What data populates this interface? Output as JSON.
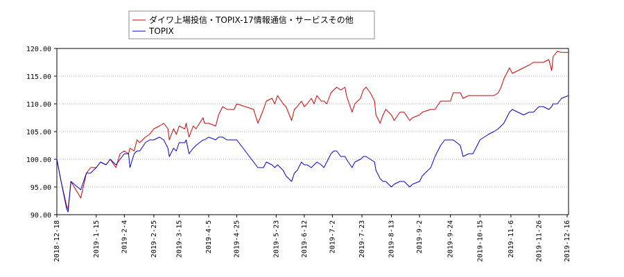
{
  "chart_data": {
    "type": "line",
    "title": "",
    "xlabel": "",
    "ylabel": "",
    "ylim": [
      90,
      120
    ],
    "xlim": [
      "2018-12-18",
      "2019-12-17"
    ],
    "grid": "y-dotted",
    "legend_position": "top-left",
    "y_ticks": [
      "90.00",
      "95.00",
      "100.00",
      "105.00",
      "110.00",
      "115.00",
      "120.00"
    ],
    "x_ticks": [
      "2018-12-18",
      "2019-1-15",
      "2019-2-4",
      "2019-2-25",
      "2019-3-15",
      "2019-4-5",
      "2019-4-25",
      "2019-5-23",
      "2019-6-12",
      "2019-7-2",
      "2019-7-23",
      "2019-8-13",
      "2019-9-2",
      "2019-9-24",
      "2019-10-15",
      "2019-11-6",
      "2019-11-26",
      "2019-12-16"
    ],
    "series": [
      {
        "name": "ダイワ上場投信・TOPIX-17情報通信・サービスその他",
        "color": "#cc0000",
        "points": [
          [
            "2018-12-18",
            100.0
          ],
          [
            "2018-12-21",
            96.0
          ],
          [
            "2018-12-25",
            91.5
          ],
          [
            "2018-12-26",
            91.0
          ],
          [
            "2018-12-28",
            96.0
          ],
          [
            "2019-1-4",
            93.0
          ],
          [
            "2019-1-8",
            97.5
          ],
          [
            "2019-1-11",
            98.5
          ],
          [
            "2019-1-15",
            98.5
          ],
          [
            "2019-1-18",
            99.5
          ],
          [
            "2019-1-22",
            99.0
          ],
          [
            "2019-1-25",
            100.0
          ],
          [
            "2019-1-29",
            98.5
          ],
          [
            "2019-2-1",
            101.0
          ],
          [
            "2019-2-4",
            101.5
          ],
          [
            "2019-2-7",
            101.0
          ],
          [
            "2019-2-8",
            102.0
          ],
          [
            "2019-2-11",
            101.5
          ],
          [
            "2019-2-13",
            103.5
          ],
          [
            "2019-2-15",
            103.0
          ],
          [
            "2019-2-19",
            104.0
          ],
          [
            "2019-2-22",
            104.5
          ],
          [
            "2019-2-25",
            105.5
          ],
          [
            "2019-3-1",
            106.0
          ],
          [
            "2019-3-4",
            106.5
          ],
          [
            "2019-3-7",
            105.5
          ],
          [
            "2019-3-8",
            103.5
          ],
          [
            "2019-3-11",
            105.5
          ],
          [
            "2019-3-13",
            104.5
          ],
          [
            "2019-3-15",
            106.0
          ],
          [
            "2019-3-19",
            105.5
          ],
          [
            "2019-3-20",
            106.5
          ],
          [
            "2019-3-22",
            104.0
          ],
          [
            "2019-3-25",
            106.0
          ],
          [
            "2019-3-27",
            105.5
          ],
          [
            "2019-4-1",
            107.5
          ],
          [
            "2019-4-2",
            106.5
          ],
          [
            "2019-4-5",
            106.5
          ],
          [
            "2019-4-10",
            106.0
          ],
          [
            "2019-4-12",
            108.0
          ],
          [
            "2019-4-15",
            109.5
          ],
          [
            "2019-4-18",
            109.0
          ],
          [
            "2019-4-23",
            109.0
          ],
          [
            "2019-4-25",
            110.0
          ],
          [
            "2019-5-7",
            109.0
          ],
          [
            "2019-5-10",
            106.5
          ],
          [
            "2019-5-14",
            109.0
          ],
          [
            "2019-5-16",
            110.5
          ],
          [
            "2019-5-20",
            111.0
          ],
          [
            "2019-5-22",
            110.0
          ],
          [
            "2019-5-24",
            111.5
          ],
          [
            "2019-5-28",
            110.0
          ],
          [
            "2019-5-30",
            109.5
          ],
          [
            "2019-6-3",
            107.0
          ],
          [
            "2019-6-5",
            109.0
          ],
          [
            "2019-6-7",
            109.5
          ],
          [
            "2019-6-10",
            110.5
          ],
          [
            "2019-6-12",
            109.5
          ],
          [
            "2019-6-14",
            110.0
          ],
          [
            "2019-6-17",
            111.0
          ],
          [
            "2019-6-19",
            110.0
          ],
          [
            "2019-6-21",
            111.5
          ],
          [
            "2019-6-24",
            110.5
          ],
          [
            "2019-6-26",
            110.5
          ],
          [
            "2019-6-28",
            110.0
          ],
          [
            "2019-7-1",
            112.0
          ],
          [
            "2019-7-3",
            112.5
          ],
          [
            "2019-7-5",
            113.0
          ],
          [
            "2019-7-8",
            112.5
          ],
          [
            "2019-7-11",
            113.0
          ],
          [
            "2019-7-12",
            111.5
          ],
          [
            "2019-7-16",
            108.5
          ],
          [
            "2019-7-18",
            110.0
          ],
          [
            "2019-7-22",
            111.0
          ],
          [
            "2019-7-24",
            112.5
          ],
          [
            "2019-7-26",
            113.0
          ],
          [
            "2019-7-29",
            112.0
          ],
          [
            "2019-8-1",
            110.5
          ],
          [
            "2019-8-2",
            108.0
          ],
          [
            "2019-8-5",
            106.5
          ],
          [
            "2019-8-7",
            108.0
          ],
          [
            "2019-8-9",
            109.0
          ],
          [
            "2019-8-13",
            108.0
          ],
          [
            "2019-8-15",
            107.0
          ],
          [
            "2019-8-19",
            108.5
          ],
          [
            "2019-8-22",
            108.5
          ],
          [
            "2019-8-26",
            107.0
          ],
          [
            "2019-8-28",
            107.5
          ],
          [
            "2019-9-2",
            108.0
          ],
          [
            "2019-9-4",
            108.5
          ],
          [
            "2019-9-10",
            109.0
          ],
          [
            "2019-9-13",
            109.0
          ],
          [
            "2019-9-17",
            110.5
          ],
          [
            "2019-9-20",
            110.5
          ],
          [
            "2019-9-24",
            110.5
          ],
          [
            "2019-9-26",
            112.0
          ],
          [
            "2019-10-1",
            112.0
          ],
          [
            "2019-10-3",
            111.0
          ],
          [
            "2019-10-7",
            111.5
          ],
          [
            "2019-10-10",
            111.5
          ],
          [
            "2019-10-15",
            111.5
          ],
          [
            "2019-10-21",
            111.5
          ],
          [
            "2019-10-25",
            111.5
          ],
          [
            "2019-10-28",
            112.0
          ],
          [
            "2019-10-30",
            113.0
          ],
          [
            "2019-11-1",
            114.5
          ],
          [
            "2019-11-5",
            116.5
          ],
          [
            "2019-11-7",
            115.5
          ],
          [
            "2019-11-11",
            116.0
          ],
          [
            "2019-11-15",
            116.5
          ],
          [
            "2019-11-19",
            117.0
          ],
          [
            "2019-11-22",
            117.5
          ],
          [
            "2019-11-26",
            117.5
          ],
          [
            "2019-11-29",
            117.5
          ],
          [
            "2019-12-3",
            118.0
          ],
          [
            "2019-12-5",
            116.0
          ],
          [
            "2019-12-6",
            118.5
          ],
          [
            "2019-12-9",
            119.5
          ],
          [
            "2019-12-12",
            119.3
          ],
          [
            "2019-12-17",
            119.3
          ]
        ]
      },
      {
        "name": "TOPIX",
        "color": "#0000cc",
        "points": [
          [
            "2018-12-18",
            100.0
          ],
          [
            "2018-12-21",
            96.0
          ],
          [
            "2018-12-25",
            91.0
          ],
          [
            "2018-12-26",
            90.5
          ],
          [
            "2018-12-28",
            96.0
          ],
          [
            "2019-1-4",
            94.5
          ],
          [
            "2019-1-8",
            97.5
          ],
          [
            "2019-1-11",
            97.5
          ],
          [
            "2019-1-15",
            98.5
          ],
          [
            "2019-1-18",
            99.5
          ],
          [
            "2019-1-22",
            99.0
          ],
          [
            "2019-1-25",
            100.0
          ],
          [
            "2019-1-29",
            99.0
          ],
          [
            "2019-2-1",
            100.0
          ],
          [
            "2019-2-4",
            101.0
          ],
          [
            "2019-2-7",
            101.0
          ],
          [
            "2019-2-8",
            98.5
          ],
          [
            "2019-2-11",
            101.0
          ],
          [
            "2019-2-13",
            101.5
          ],
          [
            "2019-2-15",
            101.5
          ],
          [
            "2019-2-19",
            103.0
          ],
          [
            "2019-2-22",
            103.5
          ],
          [
            "2019-2-25",
            103.5
          ],
          [
            "2019-3-1",
            104.0
          ],
          [
            "2019-3-4",
            103.5
          ],
          [
            "2019-3-7",
            102.0
          ],
          [
            "2019-3-8",
            100.5
          ],
          [
            "2019-3-11",
            102.0
          ],
          [
            "2019-3-13",
            101.5
          ],
          [
            "2019-3-15",
            103.0
          ],
          [
            "2019-3-19",
            103.0
          ],
          [
            "2019-3-20",
            103.5
          ],
          [
            "2019-3-22",
            101.0
          ],
          [
            "2019-3-25",
            102.0
          ],
          [
            "2019-3-27",
            102.5
          ],
          [
            "2019-4-1",
            103.5
          ],
          [
            "2019-4-2",
            103.5
          ],
          [
            "2019-4-5",
            104.0
          ],
          [
            "2019-4-10",
            103.5
          ],
          [
            "2019-4-12",
            104.0
          ],
          [
            "2019-4-15",
            104.0
          ],
          [
            "2019-4-18",
            103.5
          ],
          [
            "2019-4-23",
            103.5
          ],
          [
            "2019-4-25",
            103.5
          ],
          [
            "2019-5-7",
            99.5
          ],
          [
            "2019-5-10",
            98.5
          ],
          [
            "2019-5-14",
            98.5
          ],
          [
            "2019-5-16",
            99.5
          ],
          [
            "2019-5-20",
            99.0
          ],
          [
            "2019-5-22",
            98.5
          ],
          [
            "2019-5-24",
            99.0
          ],
          [
            "2019-5-28",
            98.0
          ],
          [
            "2019-5-30",
            97.0
          ],
          [
            "2019-6-3",
            96.0
          ],
          [
            "2019-6-5",
            97.5
          ],
          [
            "2019-6-7",
            98.0
          ],
          [
            "2019-6-10",
            99.5
          ],
          [
            "2019-6-12",
            99.0
          ],
          [
            "2019-6-14",
            99.0
          ],
          [
            "2019-6-17",
            98.5
          ],
          [
            "2019-6-19",
            99.0
          ],
          [
            "2019-6-21",
            99.5
          ],
          [
            "2019-6-24",
            99.0
          ],
          [
            "2019-6-26",
            98.5
          ],
          [
            "2019-6-28",
            99.5
          ],
          [
            "2019-7-1",
            101.0
          ],
          [
            "2019-7-3",
            101.5
          ],
          [
            "2019-7-5",
            101.5
          ],
          [
            "2019-7-8",
            100.5
          ],
          [
            "2019-7-11",
            100.5
          ],
          [
            "2019-7-12",
            100.0
          ],
          [
            "2019-7-16",
            98.5
          ],
          [
            "2019-7-18",
            99.5
          ],
          [
            "2019-7-22",
            100.0
          ],
          [
            "2019-7-24",
            100.5
          ],
          [
            "2019-7-26",
            100.5
          ],
          [
            "2019-7-29",
            100.0
          ],
          [
            "2019-8-1",
            99.5
          ],
          [
            "2019-8-2",
            98.0
          ],
          [
            "2019-8-5",
            96.5
          ],
          [
            "2019-8-7",
            96.0
          ],
          [
            "2019-8-9",
            96.0
          ],
          [
            "2019-8-13",
            95.0
          ],
          [
            "2019-8-15",
            95.5
          ],
          [
            "2019-8-19",
            96.0
          ],
          [
            "2019-8-22",
            96.0
          ],
          [
            "2019-8-26",
            95.0
          ],
          [
            "2019-8-28",
            95.5
          ],
          [
            "2019-9-2",
            96.0
          ],
          [
            "2019-9-4",
            97.0
          ],
          [
            "2019-9-10",
            98.5
          ],
          [
            "2019-9-13",
            100.5
          ],
          [
            "2019-9-17",
            102.5
          ],
          [
            "2019-9-20",
            103.5
          ],
          [
            "2019-9-24",
            103.5
          ],
          [
            "2019-9-26",
            103.5
          ],
          [
            "2019-10-1",
            102.5
          ],
          [
            "2019-10-3",
            100.5
          ],
          [
            "2019-10-7",
            101.0
          ],
          [
            "2019-10-10",
            101.0
          ],
          [
            "2019-10-15",
            103.5
          ],
          [
            "2019-10-21",
            104.5
          ],
          [
            "2019-10-25",
            105.0
          ],
          [
            "2019-10-28",
            105.5
          ],
          [
            "2019-10-30",
            106.0
          ],
          [
            "2019-11-1",
            106.5
          ],
          [
            "2019-11-5",
            108.5
          ],
          [
            "2019-11-7",
            109.0
          ],
          [
            "2019-11-11",
            108.5
          ],
          [
            "2019-11-15",
            108.0
          ],
          [
            "2019-11-19",
            108.5
          ],
          [
            "2019-11-22",
            108.5
          ],
          [
            "2019-11-26",
            109.5
          ],
          [
            "2019-11-29",
            109.5
          ],
          [
            "2019-12-3",
            109.0
          ],
          [
            "2019-12-5",
            109.5
          ],
          [
            "2019-12-6",
            110.0
          ],
          [
            "2019-12-9",
            110.0
          ],
          [
            "2019-12-12",
            111.0
          ],
          [
            "2019-12-17",
            111.5
          ]
        ]
      }
    ]
  }
}
